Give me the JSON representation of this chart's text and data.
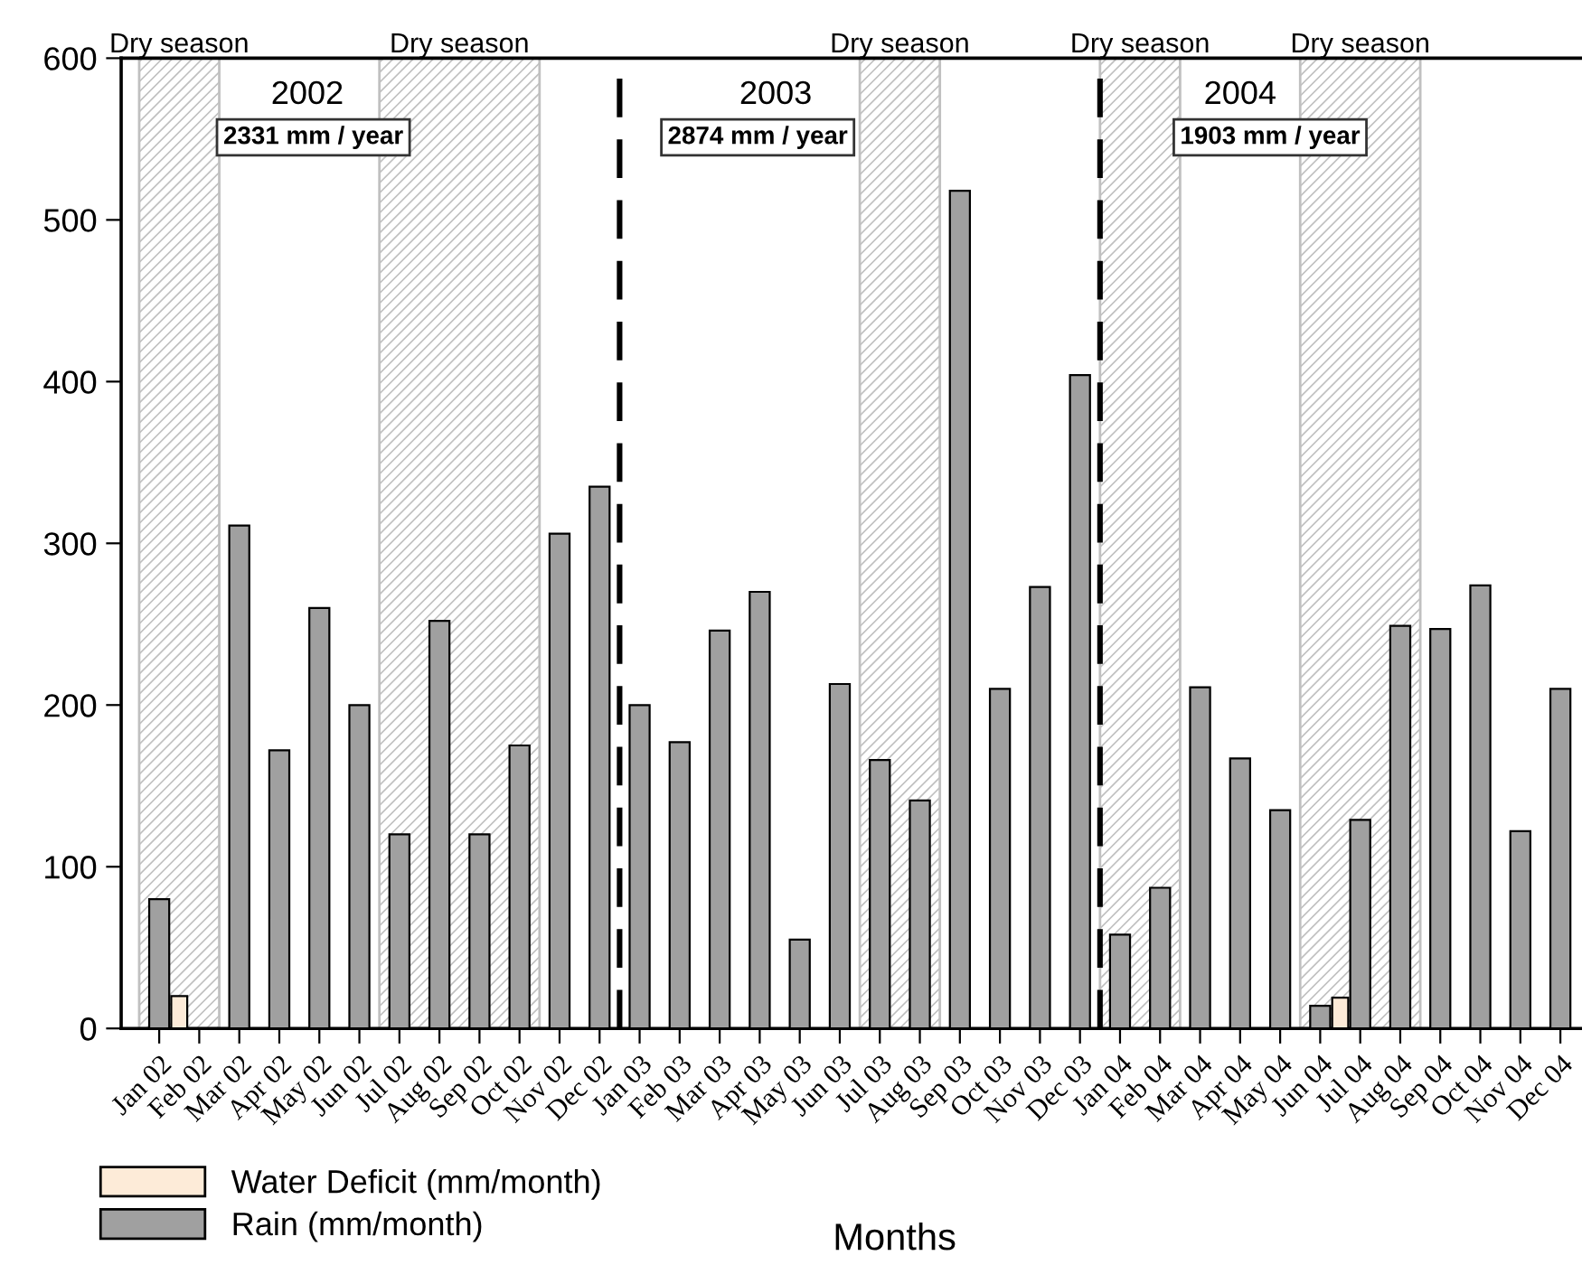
{
  "chart_data": {
    "type": "bar",
    "xlabel": "Months",
    "categories": [
      "Jan 02",
      "Feb 02",
      "Mar 02",
      "Apr 02",
      "May 02",
      "Jun 02",
      "Jul 02",
      "Aug 02",
      "Sep 02",
      "Oct 02",
      "Nov 02",
      "Dec 02",
      "Jan 03",
      "Feb 03",
      "Mar 03",
      "Apr 03",
      "May 03",
      "Jun 03",
      "Jul 03",
      "Aug 03",
      "Sep 03",
      "Oct 03",
      "Nov 03",
      "Dec 03",
      "Jan 04",
      "Feb 04",
      "Mar 04",
      "Apr 04",
      "May 04",
      "Jun 04",
      "Jul 04",
      "Aug 04",
      "Sep 04",
      "Oct 04",
      "Nov 04",
      "Dec 04"
    ],
    "series": [
      {
        "name": "Water Deficit (mm/month)",
        "color": "#fdebd8",
        "values": [
          null,
          20,
          null,
          null,
          null,
          null,
          null,
          null,
          null,
          null,
          null,
          null,
          null,
          null,
          null,
          null,
          null,
          null,
          null,
          null,
          null,
          null,
          null,
          null,
          null,
          null,
          null,
          null,
          null,
          null,
          19,
          null,
          null,
          null,
          null,
          null
        ]
      },
      {
        "name": "Rain (mm/month)",
        "color": "#a0a0a0",
        "values": [
          80,
          null,
          311,
          172,
          260,
          200,
          120,
          252,
          120,
          175,
          306,
          335,
          200,
          177,
          246,
          270,
          55,
          213,
          166,
          141,
          518,
          210,
          273,
          404,
          58,
          87,
          211,
          167,
          135,
          14,
          129,
          249,
          247,
          274,
          122,
          210
        ]
      }
    ],
    "ylim": [
      0,
      600
    ],
    "yticks": [
      0,
      100,
      200,
      300,
      400,
      500,
      600
    ],
    "grid": false,
    "legend": "bottom left",
    "bands": [
      {
        "axis": "x",
        "from": "Jan 02",
        "to": "Feb 02",
        "label": "Dry season",
        "color": "#c0c0c0"
      },
      {
        "axis": "x",
        "from": "Jul 02",
        "to": "Oct 02",
        "label": "Dry season",
        "color": "#c0c0c0"
      },
      {
        "axis": "x",
        "from": "Jul 03",
        "to": "Aug 03",
        "label": "Dry season",
        "color": "#c0c0c0"
      },
      {
        "axis": "x",
        "from": "Jan 04",
        "to": "Feb 04",
        "label": "Dry season",
        "color": "#c0c0c0"
      },
      {
        "axis": "x",
        "from": "Jun 04",
        "to": "Aug 04",
        "label": "Dry season",
        "color": "#c0c0c0"
      }
    ],
    "annotations": [
      "2002",
      "2331 mm / year",
      "2003",
      "2874 mm / year",
      "2004",
      "1903 mm / year"
    ]
  }
}
